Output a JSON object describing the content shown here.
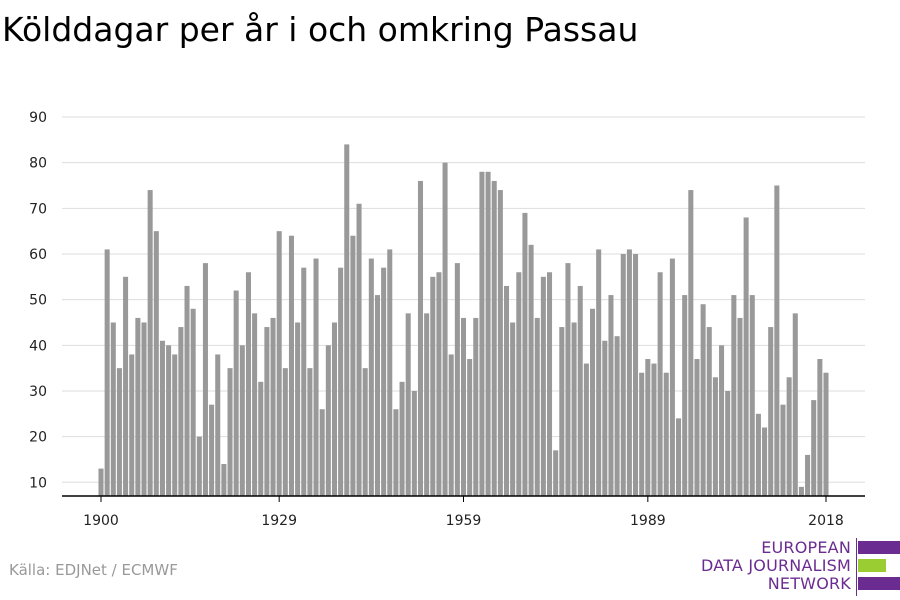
{
  "title": "Kölddagar per år i och omkring Passau",
  "source": "Källa: EDJNet / ECMWF",
  "logo": {
    "lines": [
      "EUROPEAN",
      "DATA JOURNALISM",
      "NETWORK"
    ],
    "colors": {
      "purple": "#6b2c91",
      "green": "#9acd32"
    }
  },
  "colors": {
    "bar": "#999999",
    "grid": "#dddddd",
    "axis": "#000000"
  },
  "chart_data": {
    "type": "bar",
    "title": "Kölddagar per år i och omkring Passau",
    "xlabel": "",
    "ylabel": "",
    "ylim": [
      7,
      90
    ],
    "yticks": [
      10,
      20,
      30,
      40,
      50,
      60,
      70,
      80,
      90
    ],
    "xticks": [
      1900,
      1929,
      1959,
      1989,
      2018
    ],
    "grid": true,
    "x": [
      1900,
      1901,
      1902,
      1903,
      1904,
      1905,
      1906,
      1907,
      1908,
      1909,
      1910,
      1911,
      1912,
      1913,
      1914,
      1915,
      1916,
      1917,
      1918,
      1919,
      1920,
      1921,
      1922,
      1923,
      1924,
      1925,
      1926,
      1927,
      1928,
      1929,
      1930,
      1931,
      1932,
      1933,
      1934,
      1935,
      1936,
      1937,
      1938,
      1939,
      1940,
      1941,
      1942,
      1943,
      1944,
      1945,
      1946,
      1947,
      1948,
      1949,
      1950,
      1951,
      1952,
      1953,
      1954,
      1955,
      1956,
      1957,
      1958,
      1959,
      1960,
      1961,
      1962,
      1963,
      1964,
      1965,
      1966,
      1967,
      1968,
      1969,
      1970,
      1971,
      1972,
      1973,
      1974,
      1975,
      1976,
      1977,
      1978,
      1979,
      1980,
      1981,
      1982,
      1983,
      1984,
      1985,
      1986,
      1987,
      1988,
      1989,
      1990,
      1991,
      1992,
      1993,
      1994,
      1995,
      1996,
      1997,
      1998,
      1999,
      2000,
      2001,
      2002,
      2003,
      2004,
      2005,
      2006,
      2007,
      2008,
      2009,
      2010,
      2011,
      2012,
      2013,
      2014,
      2015,
      2016,
      2017,
      2018
    ],
    "values": [
      13,
      61,
      45,
      35,
      55,
      38,
      46,
      45,
      74,
      65,
      41,
      40,
      38,
      44,
      53,
      48,
      20,
      58,
      27,
      38,
      14,
      35,
      52,
      40,
      56,
      47,
      32,
      44,
      46,
      65,
      35,
      64,
      45,
      57,
      35,
      59,
      26,
      40,
      45,
      57,
      84,
      64,
      71,
      35,
      59,
      51,
      57,
      61,
      26,
      32,
      47,
      30,
      76,
      47,
      55,
      56,
      80,
      38,
      58,
      46,
      37,
      46,
      78,
      78,
      76,
      74,
      53,
      45,
      56,
      69,
      62,
      46,
      55,
      56,
      17,
      44,
      58,
      45,
      53,
      36,
      48,
      61,
      41,
      51,
      42,
      60,
      61,
      60,
      34,
      37,
      36,
      56,
      34,
      59,
      24,
      51,
      74,
      37,
      49,
      44,
      33,
      40,
      30,
      51,
      46,
      68,
      51,
      25,
      22,
      44,
      75,
      27,
      33,
      47,
      9,
      16,
      28,
      37,
      34
    ]
  }
}
